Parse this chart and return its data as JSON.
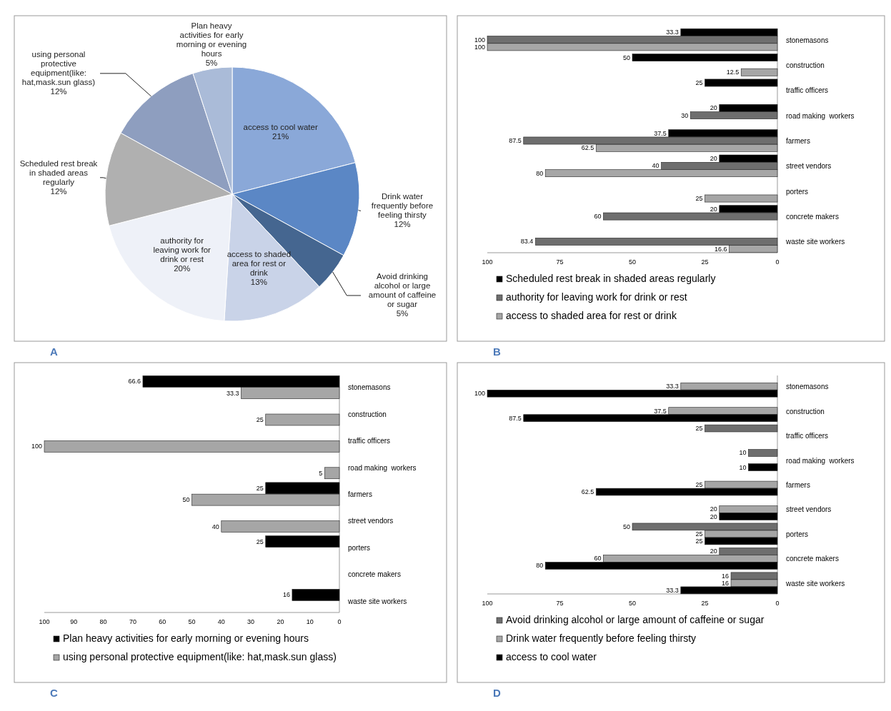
{
  "chart_data": [
    {
      "type": "pie",
      "categories": [
        "access to cool water",
        "Drink water frequently before feeling thirsty",
        "Avoid drinking alcohol or large amount of caffeine or sugar",
        "access to shaded area for rest or drink",
        "authority for leaving work for drink or rest",
        "Scheduled rest break in shaded areas regularly",
        "using personal protective equipment(like: hat,mask.sun glass)",
        "Plan heavy activities for early morning or evening hours"
      ],
      "values": [
        21,
        12,
        5,
        13,
        20,
        12,
        12,
        5
      ],
      "colors": [
        "#8aa8d8",
        "#5b87c5",
        "#456690",
        "#c9d3e8",
        "#eef1f8",
        "#b0b0b0",
        "#8e9ebf",
        "#aabbd8"
      ],
      "value_labels": [
        "21%",
        "12%",
        "5%",
        "13%",
        "20%",
        "12%",
        "12%",
        "5%"
      ],
      "annotations": [
        "A"
      ]
    },
    {
      "type": "bar",
      "orientation": "horizontal",
      "categories": [
        "stonemasons",
        "construction",
        "traffic officers",
        "road making  workers",
        "farmers",
        "street vendors",
        "porters",
        "concrete makers",
        "waste site workers"
      ],
      "xlim": [
        100,
        0
      ],
      "xticks": [
        100,
        75,
        50,
        25,
        0
      ],
      "data_labels": true,
      "legend": "bottom",
      "annotations": [
        "B"
      ],
      "series": [
        {
          "name": "Scheduled rest break in shaded areas regularly",
          "color": "#000000",
          "values": [
            33.3,
            50,
            25,
            20,
            37.5,
            20,
            null,
            20,
            null
          ]
        },
        {
          "name": "authority for leaving work for drink or rest",
          "color": "#6e6e6e",
          "values": [
            100,
            null,
            null,
            30,
            87.5,
            40,
            null,
            60,
            83.4
          ]
        },
        {
          "name": "access to shaded area for rest or drink",
          "color": "#a6a6a6",
          "values": [
            100,
            12.5,
            null,
            null,
            62.5,
            80,
            25,
            null,
            16.6
          ]
        }
      ]
    },
    {
      "type": "bar",
      "orientation": "horizontal",
      "categories": [
        "stonemasons",
        "construction",
        "traffic officers",
        "road making  workers",
        "farmers",
        "street vendors",
        "porters",
        "concrete makers",
        "waste site workers"
      ],
      "xlim": [
        100,
        0
      ],
      "xticks": [
        100,
        90,
        80,
        70,
        60,
        50,
        40,
        30,
        20,
        10,
        0
      ],
      "data_labels": true,
      "legend": "bottom",
      "annotations": [
        "C"
      ],
      "series": [
        {
          "name": "Plan heavy activities for early morning or evening hours",
          "color": "#000000",
          "values": [
            66.6,
            null,
            null,
            null,
            25,
            null,
            25,
            null,
            16
          ]
        },
        {
          "name": "using personal protective equipment(like: hat,mask.sun glass)",
          "color": "#a6a6a6",
          "values": [
            33.3,
            25,
            100,
            5,
            50,
            40,
            null,
            null,
            null
          ]
        }
      ]
    },
    {
      "type": "bar",
      "orientation": "horizontal",
      "categories": [
        "stonemasons",
        "construction",
        "traffic officers",
        "road making  workers",
        "farmers",
        "street vendors",
        "porters",
        "concrete makers",
        "waste site workers"
      ],
      "xlim": [
        100,
        0
      ],
      "xticks": [
        100,
        75,
        50,
        25,
        0
      ],
      "data_labels": true,
      "legend": "bottom",
      "annotations": [
        "D"
      ],
      "series": [
        {
          "name": "Avoid drinking alcohol or large amount of caffeine or sugar",
          "color": "#6e6e6e",
          "values": [
            null,
            null,
            25,
            10,
            null,
            null,
            50,
            20,
            16
          ]
        },
        {
          "name": "Drink water frequently before feeling thirsty",
          "color": "#a6a6a6",
          "values": [
            33.3,
            37.5,
            null,
            null,
            25,
            20,
            25,
            60,
            16
          ]
        },
        {
          "name": "access to cool water",
          "color": "#000000",
          "values": [
            100,
            87.5,
            null,
            10,
            62.5,
            20,
            25,
            80,
            33.3
          ]
        }
      ]
    }
  ]
}
